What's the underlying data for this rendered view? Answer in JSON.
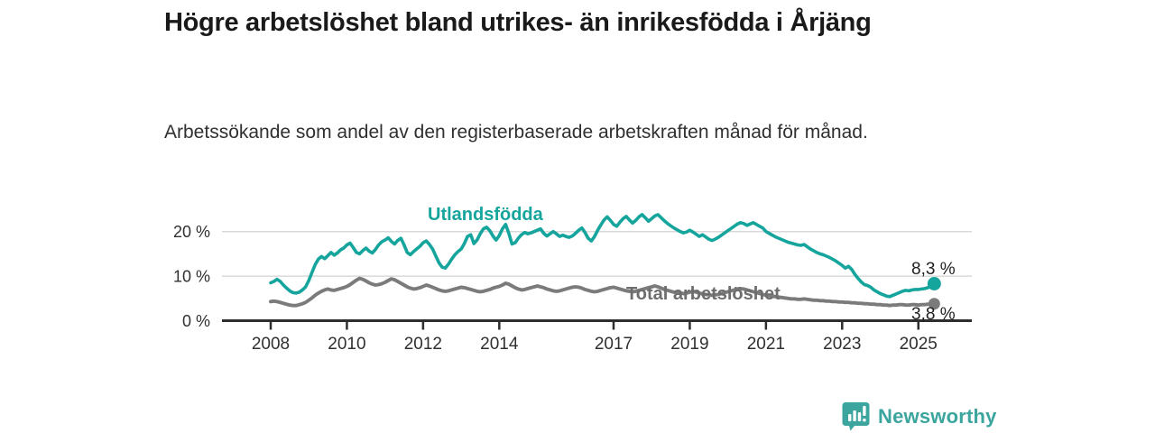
{
  "header": {
    "title": "Högre arbetslöshet bland utrikes- än inrikesfödda i Årjäng",
    "subtitle": "Arbetssökande som andel av den registerbaserade arbetskraften månad för månad."
  },
  "footer": {
    "brand": "Newsworthy"
  },
  "colors": {
    "accent_teal": "#16a59d",
    "line_gray": "#7b7b7b",
    "axis": "#2e2e2e",
    "grid": "#d9d9d9",
    "tick_text": "#303030",
    "logo_teal": "#3ba59e"
  },
  "chart_data": {
    "type": "line",
    "title": "Högre arbetslöshet bland utrikes- än inrikesfödda i Årjäng",
    "subtitle": "Arbetssökande som andel av den registerbaserade arbetskraften månad för månad.",
    "unit": "%",
    "x_start_year": 2008,
    "points_per_year": 12,
    "ylim": [
      0,
      26
    ],
    "grid": true,
    "y_ticks": [
      {
        "value": 0,
        "label": "0 %"
      },
      {
        "value": 10,
        "label": "10 %"
      },
      {
        "value": 20,
        "label": "20 %"
      }
    ],
    "x_ticks": [
      {
        "value": 2008,
        "label": "2008"
      },
      {
        "value": 2010,
        "label": "2010"
      },
      {
        "value": 2012,
        "label": "2012"
      },
      {
        "value": 2014,
        "label": "2014"
      },
      {
        "value": 2017,
        "label": "2017"
      },
      {
        "value": 2019,
        "label": "2019"
      },
      {
        "value": 2021,
        "label": "2021"
      },
      {
        "value": 2023,
        "label": "2023"
      },
      {
        "value": 2025,
        "label": "2025"
      }
    ],
    "series": [
      {
        "name": "Total arbetslöshet",
        "color": "#7b7b7b",
        "end_label": "3,8 %",
        "end_value": 3.8,
        "values": [
          4.3,
          4.4,
          4.3,
          4.1,
          3.9,
          3.7,
          3.5,
          3.4,
          3.4,
          3.6,
          3.8,
          4.1,
          4.6,
          5.1,
          5.7,
          6.2,
          6.6,
          6.9,
          7.1,
          6.9,
          6.8,
          7.0,
          7.2,
          7.4,
          7.7,
          8.1,
          8.6,
          9.1,
          9.5,
          9.3,
          8.9,
          8.5,
          8.2,
          8.0,
          8.1,
          8.3,
          8.6,
          9.0,
          9.4,
          9.2,
          8.8,
          8.4,
          8.0,
          7.6,
          7.3,
          7.1,
          7.2,
          7.4,
          7.7,
          8.0,
          7.8,
          7.5,
          7.2,
          6.9,
          6.7,
          6.6,
          6.7,
          6.9,
          7.1,
          7.3,
          7.5,
          7.4,
          7.2,
          7.0,
          6.8,
          6.6,
          6.5,
          6.6,
          6.8,
          7.0,
          7.3,
          7.5,
          7.7,
          8.0,
          8.4,
          8.2,
          7.8,
          7.4,
          7.1,
          6.9,
          7.0,
          7.2,
          7.4,
          7.6,
          7.8,
          7.6,
          7.4,
          7.1,
          6.9,
          6.7,
          6.6,
          6.7,
          6.9,
          7.1,
          7.3,
          7.5,
          7.6,
          7.5,
          7.3,
          7.0,
          6.8,
          6.6,
          6.5,
          6.6,
          6.8,
          7.0,
          7.2,
          7.4,
          7.5,
          7.3,
          7.1,
          6.9,
          6.7,
          6.6,
          6.5,
          6.6,
          6.8,
          7.0,
          7.2,
          7.4,
          7.6,
          7.8,
          7.6,
          7.3,
          7.0,
          6.8,
          6.6,
          6.4,
          6.3,
          6.2,
          6.1,
          6.2,
          6.4,
          6.6,
          6.4,
          6.2,
          6.0,
          5.9,
          5.8,
          5.7,
          5.8,
          5.9,
          6.1,
          6.3,
          6.5,
          6.7,
          6.9,
          7.1,
          7.2,
          7.1,
          6.9,
          6.7,
          6.5,
          6.3,
          6.1,
          5.9,
          5.7,
          5.6,
          5.5,
          5.4,
          5.3,
          5.2,
          5.1,
          5.0,
          4.9,
          4.9,
          4.8,
          4.8,
          4.9,
          4.8,
          4.7,
          4.6,
          4.6,
          4.5,
          4.5,
          4.4,
          4.4,
          4.3,
          4.3,
          4.2,
          4.2,
          4.1,
          4.1,
          4.0,
          4.0,
          3.9,
          3.9,
          3.8,
          3.8,
          3.7,
          3.7,
          3.6,
          3.6,
          3.5,
          3.5,
          3.4,
          3.5,
          3.5,
          3.6,
          3.6,
          3.5,
          3.5,
          3.6,
          3.6,
          3.5,
          3.6,
          3.6,
          3.7,
          3.7,
          3.8
        ]
      },
      {
        "name": "Utlandsfödda",
        "color": "#16a59d",
        "end_label": "8,3 %",
        "end_value": 8.3,
        "values": [
          8.5,
          8.8,
          9.3,
          8.8,
          8.0,
          7.3,
          6.7,
          6.3,
          6.2,
          6.4,
          6.9,
          7.6,
          9.0,
          10.8,
          12.6,
          13.8,
          14.4,
          13.9,
          14.6,
          15.3,
          14.7,
          15.2,
          15.9,
          16.3,
          17.0,
          17.4,
          16.4,
          15.3,
          15.0,
          15.7,
          16.3,
          15.6,
          15.2,
          16.0,
          17.0,
          17.7,
          18.1,
          18.6,
          17.8,
          17.2,
          18.0,
          18.5,
          17.0,
          15.3,
          14.8,
          15.5,
          16.1,
          16.7,
          17.5,
          17.9,
          17.1,
          16.1,
          14.5,
          13.0,
          12.0,
          11.8,
          12.7,
          13.8,
          14.8,
          15.5,
          16.1,
          17.3,
          18.9,
          19.3,
          17.3,
          18.1,
          19.5,
          20.6,
          21.0,
          20.2,
          19.0,
          18.1,
          19.1,
          20.6,
          21.6,
          19.6,
          17.2,
          17.5,
          18.5,
          19.3,
          19.8,
          19.5,
          19.7,
          20.0,
          20.3,
          20.6,
          19.6,
          19.0,
          19.5,
          20.0,
          19.5,
          18.9,
          19.2,
          18.9,
          18.7,
          19.0,
          19.6,
          20.3,
          20.8,
          19.8,
          18.5,
          17.9,
          18.9,
          20.3,
          21.5,
          22.6,
          23.3,
          22.5,
          21.6,
          21.2,
          22.1,
          22.9,
          23.4,
          22.6,
          21.9,
          22.5,
          23.3,
          23.8,
          23.1,
          22.3,
          22.9,
          23.5,
          23.8,
          23.1,
          22.4,
          21.8,
          21.3,
          20.8,
          20.4,
          20.0,
          19.7,
          19.9,
          20.3,
          19.9,
          19.4,
          18.9,
          19.3,
          18.8,
          18.3,
          18.0,
          18.3,
          18.7,
          19.2,
          19.7,
          20.2,
          20.7,
          21.2,
          21.7,
          22.0,
          21.8,
          21.4,
          21.7,
          22.0,
          21.6,
          21.2,
          20.8,
          20.0,
          19.6,
          19.2,
          18.8,
          18.5,
          18.2,
          17.9,
          17.6,
          17.4,
          17.2,
          17.0,
          16.9,
          17.1,
          16.6,
          16.1,
          15.7,
          15.3,
          15.0,
          14.8,
          14.5,
          14.2,
          13.8,
          13.4,
          12.9,
          12.4,
          11.8,
          12.2,
          11.5,
          10.4,
          9.5,
          8.7,
          8.1,
          7.9,
          7.5,
          6.9,
          6.5,
          6.1,
          5.8,
          5.5,
          5.4,
          5.7,
          6.0,
          6.3,
          6.6,
          6.8,
          6.7,
          6.9,
          7.0,
          7.0,
          7.1,
          7.2,
          7.4,
          7.8,
          8.3
        ]
      }
    ]
  }
}
